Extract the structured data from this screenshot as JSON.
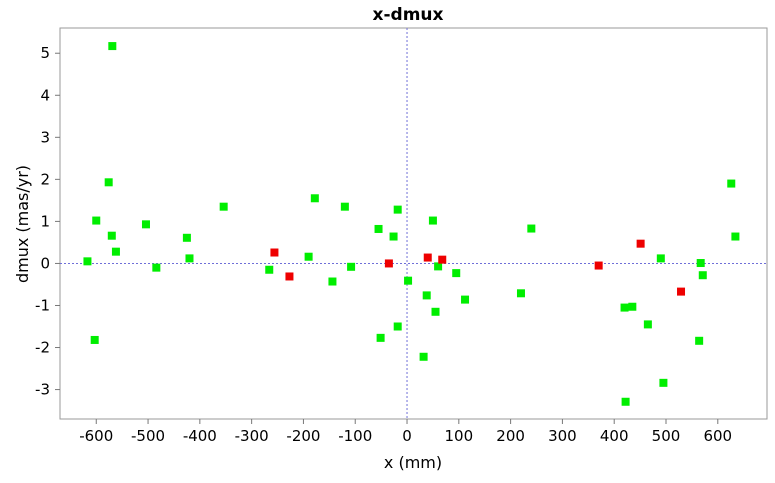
{
  "chart_data": {
    "type": "scatter",
    "title": "x-dmux",
    "xlabel": "x (mm)",
    "ylabel": "dmux (mas/yr)",
    "xlim": [
      -670,
      695
    ],
    "ylim": [
      -3.7,
      5.6
    ],
    "xticks": [
      -600,
      -500,
      -400,
      -300,
      -200,
      -100,
      0,
      100,
      200,
      300,
      400,
      500,
      600
    ],
    "yticks": [
      -3,
      -2,
      -1,
      0,
      1,
      2,
      3,
      4,
      5
    ],
    "grid": false,
    "reference_lines": {
      "x": 0,
      "y": 0
    },
    "series": [
      {
        "color": "#00ee00",
        "points": [
          {
            "x": -569,
            "y": 5.17
          },
          {
            "x": -576,
            "y": 1.93
          },
          {
            "x": -600,
            "y": 1.02
          },
          {
            "x": -570,
            "y": 0.66
          },
          {
            "x": -562,
            "y": 0.28
          },
          {
            "x": -617,
            "y": 0.05
          },
          {
            "x": -603,
            "y": -1.82
          },
          {
            "x": -504,
            "y": 0.93
          },
          {
            "x": -484,
            "y": -0.1
          },
          {
            "x": -425,
            "y": 0.61
          },
          {
            "x": -420,
            "y": 0.12
          },
          {
            "x": -354,
            "y": 1.35
          },
          {
            "x": -266,
            "y": -0.15
          },
          {
            "x": -190,
            "y": 0.16
          },
          {
            "x": -178,
            "y": 1.55
          },
          {
            "x": -144,
            "y": -0.43
          },
          {
            "x": -120,
            "y": 1.35
          },
          {
            "x": -108,
            "y": -0.08
          },
          {
            "x": -55,
            "y": 0.82
          },
          {
            "x": -51,
            "y": -1.77
          },
          {
            "x": -26,
            "y": 0.64
          },
          {
            "x": -18,
            "y": 1.28
          },
          {
            "x": -18,
            "y": -1.5
          },
          {
            "x": 2,
            "y": -0.41
          },
          {
            "x": 32,
            "y": -2.22
          },
          {
            "x": 38,
            "y": -0.76
          },
          {
            "x": 50,
            "y": 1.02
          },
          {
            "x": 55,
            "y": -1.15
          },
          {
            "x": 60,
            "y": -0.07
          },
          {
            "x": 95,
            "y": -0.23
          },
          {
            "x": 112,
            "y": -0.86
          },
          {
            "x": 220,
            "y": -0.71
          },
          {
            "x": 240,
            "y": 0.83
          },
          {
            "x": 420,
            "y": -1.05
          },
          {
            "x": 422,
            "y": -3.29
          },
          {
            "x": 435,
            "y": -1.03
          },
          {
            "x": 465,
            "y": -1.45
          },
          {
            "x": 490,
            "y": 0.12
          },
          {
            "x": 495,
            "y": -2.84
          },
          {
            "x": 564,
            "y": -1.84
          },
          {
            "x": 567,
            "y": 0.01
          },
          {
            "x": 571,
            "y": -0.28
          },
          {
            "x": 626,
            "y": 1.9
          },
          {
            "x": 634,
            "y": 0.64
          }
        ]
      },
      {
        "color": "#ee0000",
        "points": [
          {
            "x": -256,
            "y": 0.26
          },
          {
            "x": -227,
            "y": -0.31
          },
          {
            "x": -35,
            "y": 0.0
          },
          {
            "x": 40,
            "y": 0.14
          },
          {
            "x": 68,
            "y": 0.09
          },
          {
            "x": 370,
            "y": -0.05
          },
          {
            "x": 451,
            "y": 0.47
          },
          {
            "x": 529,
            "y": -0.67
          }
        ]
      }
    ]
  }
}
